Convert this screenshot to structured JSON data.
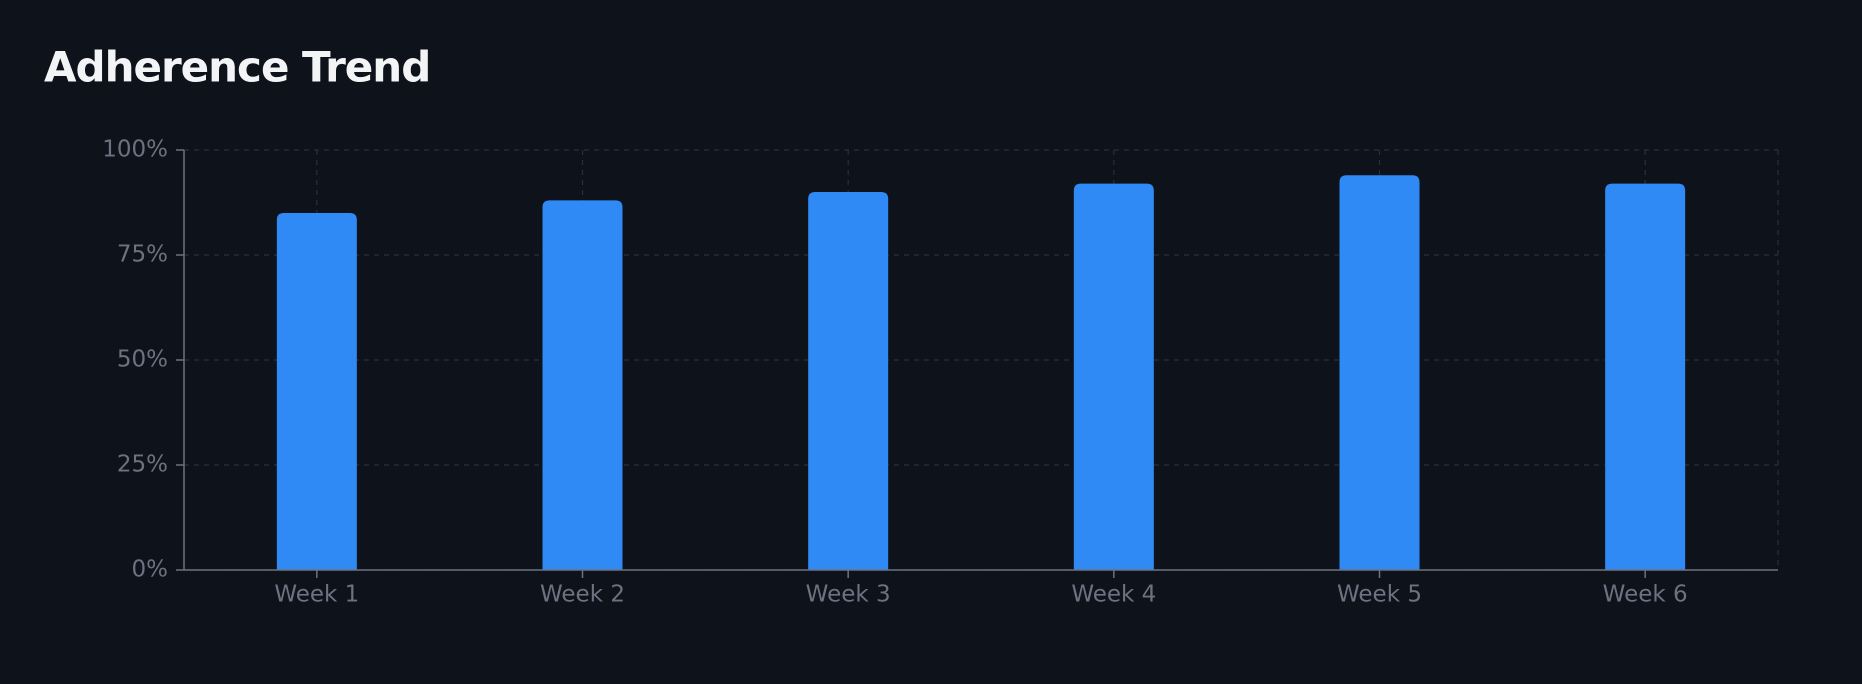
{
  "chart_data": {
    "type": "bar",
    "title": "Adherence Trend",
    "categories": [
      "Week 1",
      "Week 2",
      "Week 3",
      "Week 4",
      "Week 5",
      "Week 6"
    ],
    "values": [
      85,
      88,
      90,
      92,
      94,
      92
    ],
    "color": "#2f8af5",
    "ylim": [
      0,
      100
    ],
    "yticks": [
      {
        "value": 0,
        "label": "0%"
      },
      {
        "value": 25,
        "label": "25%"
      },
      {
        "value": 50,
        "label": "50%"
      },
      {
        "value": 75,
        "label": "75%"
      },
      {
        "value": 100,
        "label": "100%"
      }
    ],
    "grid": true
  }
}
